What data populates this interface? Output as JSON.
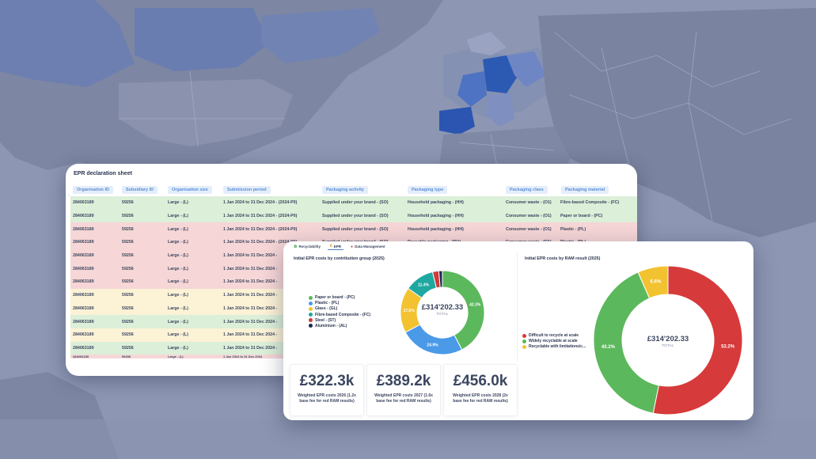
{
  "sheet": {
    "title": "EPR declaration sheet",
    "columns": [
      "Organisation ID",
      "Subsidiary ID",
      "Organisation size",
      "Submission period",
      "Packaging activity",
      "Packaging type",
      "Packaging class",
      "Packaging material"
    ],
    "rows": [
      {
        "status": "green",
        "cells": [
          "284063189",
          "59256",
          "Large - (L)",
          "1 Jan 2024 to 31 Dec 2024 - (2024-P0)",
          "Supplied under your brand - (SO)",
          "Household packaging - (HH)",
          "Consumer waste - (O1)",
          "Fibre-based Composite - (FC)"
        ]
      },
      {
        "status": "green",
        "cells": [
          "284063189",
          "59256",
          "Large - (L)",
          "1 Jan 2024 to 31 Dec 2024 - (2024-P0)",
          "Supplied under your brand - (SO)",
          "Household packaging - (HH)",
          "Consumer waste - (O1)",
          "Paper or board - (PC)"
        ]
      },
      {
        "status": "red",
        "cells": [
          "284063189",
          "59256",
          "Large - (L)",
          "1 Jan 2024 to 31 Dec 2024 - (2024-P0)",
          "Supplied under your brand - (SO)",
          "Household packaging - (HH)",
          "Consumer waste - (O1)",
          "Plastic - (PL)"
        ]
      },
      {
        "status": "red",
        "cells": [
          "284063189",
          "59256",
          "Large - (L)",
          "1 Jan 2024 to 31 Dec 2024 - (2024-P0)",
          "Supplied under your brand - (SO)",
          "Reusable packaging - (RU)",
          "Consumer waste - (O1)",
          "Plastic - (PL)"
        ]
      },
      {
        "status": "red",
        "cells": [
          "284063189",
          "59256",
          "Large - (L)",
          "1 Jan 2024 to 31 Dec 2024 -",
          "",
          "",
          "",
          ""
        ]
      },
      {
        "status": "red",
        "cells": [
          "284063189",
          "59256",
          "Large - (L)",
          "1 Jan 2024 to 31 Dec 2024 -",
          "",
          "",
          "",
          ""
        ]
      },
      {
        "status": "red",
        "cells": [
          "284063189",
          "59256",
          "Large - (L)",
          "1 Jan 2024 to 31 Dec 2024 -",
          "",
          "",
          "",
          ""
        ]
      },
      {
        "status": "yellow",
        "cells": [
          "284063189",
          "59256",
          "Large - (L)",
          "1 Jan 2024 to 31 Dec 2024 -",
          "",
          "",
          "",
          ""
        ]
      },
      {
        "status": "yellow",
        "cells": [
          "284063189",
          "59256",
          "Large - (L)",
          "1 Jan 2024 to 31 Dec 2024 -",
          "",
          "",
          "",
          ""
        ]
      },
      {
        "status": "green",
        "cells": [
          "284063189",
          "59256",
          "Large - (L)",
          "1 Jan 2024 to 31 Dec 2024 -",
          "",
          "",
          "",
          ""
        ]
      },
      {
        "status": "yellow",
        "cells": [
          "284063189",
          "59256",
          "Large - (L)",
          "1 Jan 2024 to 31 Dec 2024 -",
          "",
          "",
          "",
          ""
        ]
      },
      {
        "status": "green",
        "cells": [
          "284063189",
          "59256",
          "Large - (L)",
          "1 Jan 2024 to 31 Dec 2024 -",
          "",
          "",
          "",
          ""
        ]
      }
    ],
    "partial_row": [
      "284063189",
      "59256",
      "Large - (L)",
      "1 Jan 2024 to 31 Dec 2024",
      "",
      "",
      "",
      ""
    ]
  },
  "dashboard": {
    "tabs": [
      {
        "label": "Recyclability",
        "icon": "recycle-icon",
        "glyph": "♻",
        "color": "#3fa34d"
      },
      {
        "label": "EPR",
        "icon": "coin-icon",
        "glyph": "₤",
        "color": "#e0a020"
      },
      {
        "label": "Data Management",
        "icon": "database-icon",
        "glyph": "●",
        "color": "#c0504d"
      }
    ],
    "active_tab": "EPR",
    "center_total_label": "TOTAL"
  },
  "kpis": [
    {
      "value": "£322.3k",
      "label": "Weighted EPR costs 2026 (1.2x base fee for red RAM results)"
    },
    {
      "value": "£389.2k",
      "label": "Weighted EPR costs 2027 (1.6x base fee for red RAM results)"
    },
    {
      "value": "£456.0k",
      "label": "Weighted EPR costs 2028 (2x base fee for red RAM results)"
    }
  ],
  "chart_data": [
    {
      "type": "pie",
      "title": "Initial EPR costs by contribution group (2025)",
      "center_value": "£314'202.33",
      "center_label": "TOTAL",
      "series": [
        {
          "name": "Paper or board - (PC)",
          "value": 42.3,
          "label": "42.3%",
          "color": "#5cb85c"
        },
        {
          "name": "Plastic - (PL)",
          "value": 24.9,
          "label": "24.9%",
          "color": "#4a9ae8"
        },
        {
          "name": "Glass - (GL)",
          "value": 17.6,
          "label": "17.6%",
          "color": "#f2c230"
        },
        {
          "name": "Fibre-based Composite - (FC)",
          "value": 11.4,
          "label": "11.4%",
          "color": "#1fa8a0"
        },
        {
          "name": "Steel - (ST)",
          "value": 2.4,
          "label": "",
          "color": "#d03a3a"
        },
        {
          "name": "Aluminium - (AL)",
          "value": 1.4,
          "label": "",
          "color": "#1c2b52"
        }
      ]
    },
    {
      "type": "pie",
      "title": "Initial EPR costs by RAM result (2025)",
      "center_value": "£314'202.33",
      "center_label": "TOTAL",
      "series": [
        {
          "name": "Difficult to recycle at scale",
          "value": 53.2,
          "label": "53.2%",
          "color": "#d63a3a"
        },
        {
          "name": "Widely recyclable at scale",
          "value": 40.2,
          "label": "40.2%",
          "color": "#5cb85c"
        },
        {
          "name": "Recyclable with limitations/c...",
          "value": 6.6,
          "label": "6.6%",
          "color": "#f2c230"
        }
      ]
    }
  ]
}
